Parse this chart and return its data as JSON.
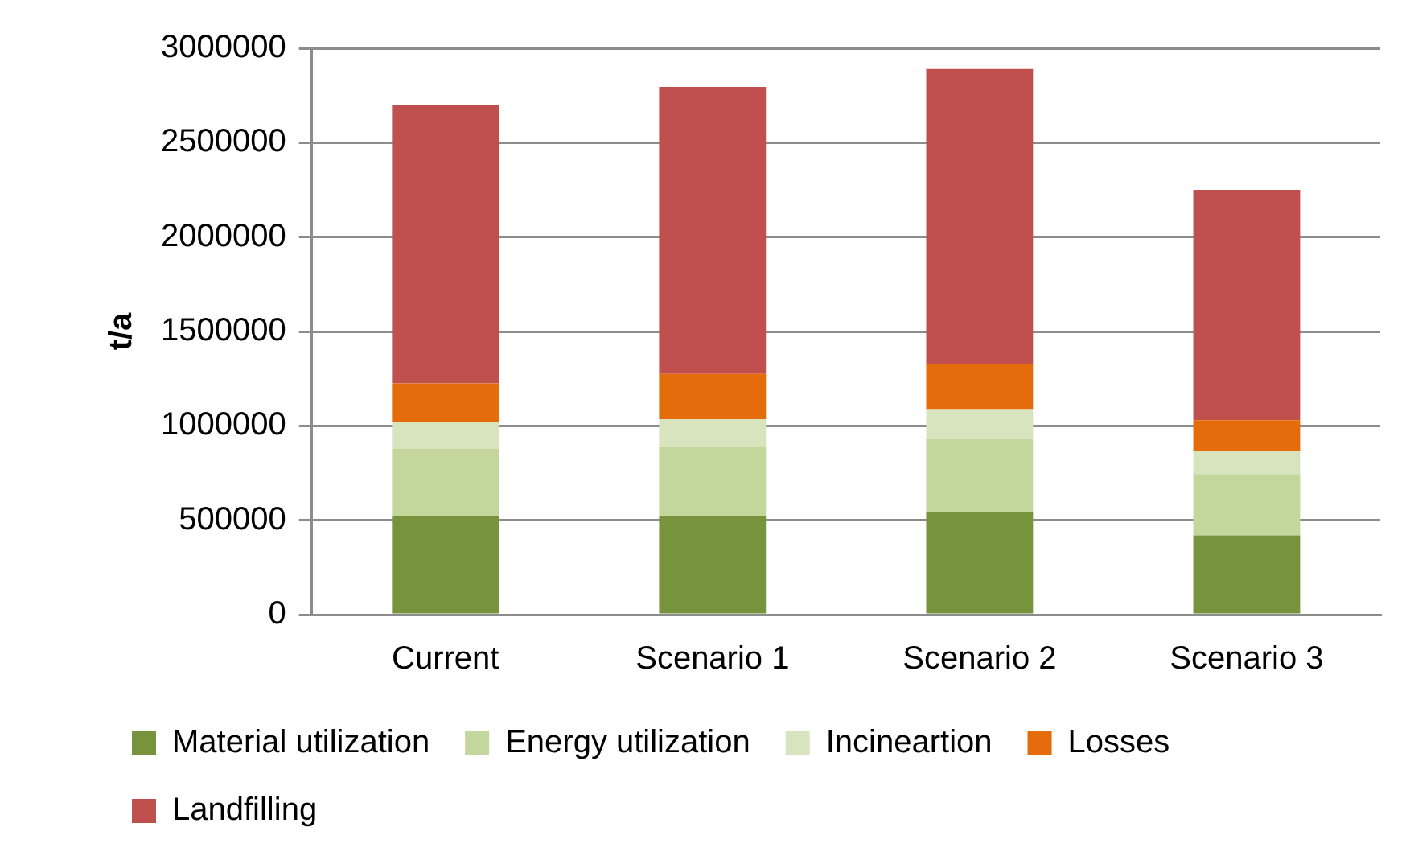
{
  "chart_data": {
    "type": "bar",
    "stacked": true,
    "ylabel": "t/a",
    "categories": [
      "Current",
      "Scenario 1",
      "Scenario 2",
      "Scenario 3"
    ],
    "series": [
      {
        "name": "Material utilization",
        "color": "#77933c",
        "values": [
          520000,
          520000,
          545000,
          420000
        ]
      },
      {
        "name": "Energy utilization",
        "color": "#c3d69b",
        "values": [
          360000,
          370000,
          385000,
          325000
        ]
      },
      {
        "name": "Incineartion",
        "color": "#d7e4bd",
        "values": [
          140000,
          145000,
          155000,
          120000
        ]
      },
      {
        "name": "Losses",
        "color": "#e46c0a",
        "values": [
          205000,
          240000,
          240000,
          165000
        ]
      },
      {
        "name": "Landfilling",
        "color": "#c0504d",
        "values": [
          1475000,
          1520000,
          1565000,
          1220000
        ]
      }
    ],
    "ylim": [
      0,
      3000000
    ],
    "yticks": [
      0,
      500000,
      1000000,
      1500000,
      2000000,
      2500000,
      3000000
    ],
    "grid": "y",
    "legend": "bottom"
  }
}
